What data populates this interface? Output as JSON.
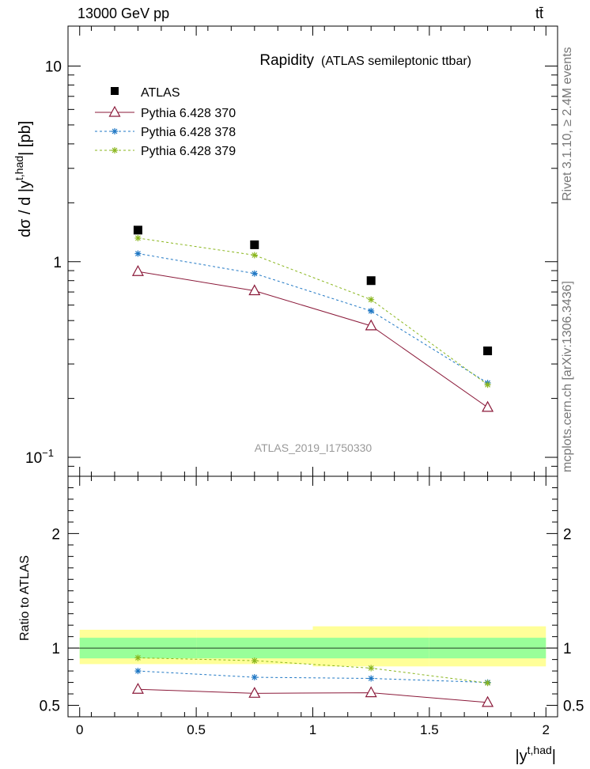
{
  "header": {
    "left": "13000 GeV pp",
    "right": "tt̄"
  },
  "side_text": {
    "upper": "Rivet 3.1.10, ≥ 2.4M events",
    "lower": "mcplots.cern.ch [arXiv:1306.3436]"
  },
  "chart_data": {
    "type": "scatter",
    "title": "Rapidity",
    "subtitle": "(ATLAS semileptonic ttbar)",
    "analysis_label": "ATLAS_2019_I1750330",
    "xlabel": "|y^t,had|",
    "ylabel_main": "dσ / d |y^t,had| [pb]",
    "ylabel_ratio": "Ratio to ATLAS",
    "xlim": [
      -0.05,
      2.05
    ],
    "ylim_main": [
      0.08,
      16
    ],
    "ylim_ratio": [
      0.4,
      2.5
    ],
    "log_y_main": true,
    "legend_position": "top-left",
    "x_ticks": [
      "0",
      "0.5",
      "1",
      "1.5",
      "2"
    ],
    "y_ticks_main": [
      "10",
      "1",
      "10^−1"
    ],
    "y_ticks_ratio": [
      "2",
      "1",
      "0.5"
    ],
    "x": [
      0.25,
      0.75,
      1.25,
      1.75
    ],
    "x_bins": [
      [
        0,
        0.5
      ],
      [
        0.5,
        1.0
      ],
      [
        1.0,
        1.5
      ],
      [
        1.5,
        2.0
      ]
    ],
    "series": [
      {
        "name": "ATLAS",
        "color": "#000000",
        "marker": "square",
        "values": [
          1.45,
          1.22,
          0.8,
          0.35
        ],
        "ratio": [
          1.0,
          1.0,
          1.0,
          1.0
        ]
      },
      {
        "name": "Pythia 6.428 370",
        "color": "#8b1a3a",
        "marker": "triangle-open",
        "dash": "solid",
        "values": [
          0.89,
          0.71,
          0.47,
          0.18
        ],
        "ratio": [
          0.64,
          0.605,
          0.61,
          0.525
        ]
      },
      {
        "name": "Pythia 6.428 378",
        "color": "#1f77c4",
        "marker": "star",
        "dash": "dashed",
        "values": [
          1.1,
          0.87,
          0.56,
          0.24
        ],
        "ratio": [
          0.8,
          0.745,
          0.735,
          0.7
        ]
      },
      {
        "name": "Pythia 6.428 379",
        "color": "#8ab61e",
        "marker": "star",
        "dash": "dashed",
        "values": [
          1.32,
          1.08,
          0.64,
          0.235
        ],
        "ratio": [
          0.915,
          0.89,
          0.825,
          0.695
        ]
      }
    ],
    "ratio_bands": {
      "inner_color": "#99ff99",
      "outer_color": "#ffff99",
      "inner": [
        [
          0.91,
          1.09
        ],
        [
          0.91,
          1.09
        ],
        [
          0.91,
          1.09
        ],
        [
          0.91,
          1.09
        ]
      ],
      "outer": [
        [
          0.86,
          1.16
        ],
        [
          0.86,
          1.16
        ],
        [
          0.84,
          1.19
        ],
        [
          0.84,
          1.19
        ]
      ]
    }
  }
}
